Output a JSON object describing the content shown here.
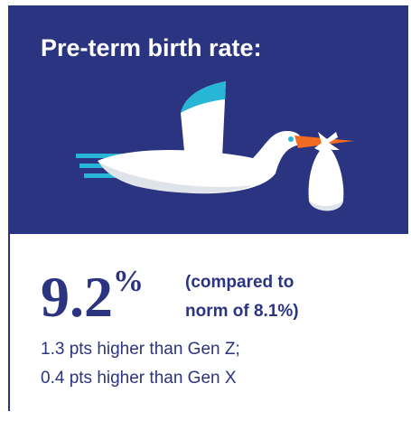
{
  "header": {
    "title": "Pre-term birth rate:"
  },
  "stat": {
    "value": "9.2",
    "unit": "%",
    "comparison": [
      "(compared to",
      "norm of 8.1%)"
    ]
  },
  "notes": [
    "1.3 pts higher than Gen Z;",
    "0.4 pts higher than Gen X"
  ]
}
